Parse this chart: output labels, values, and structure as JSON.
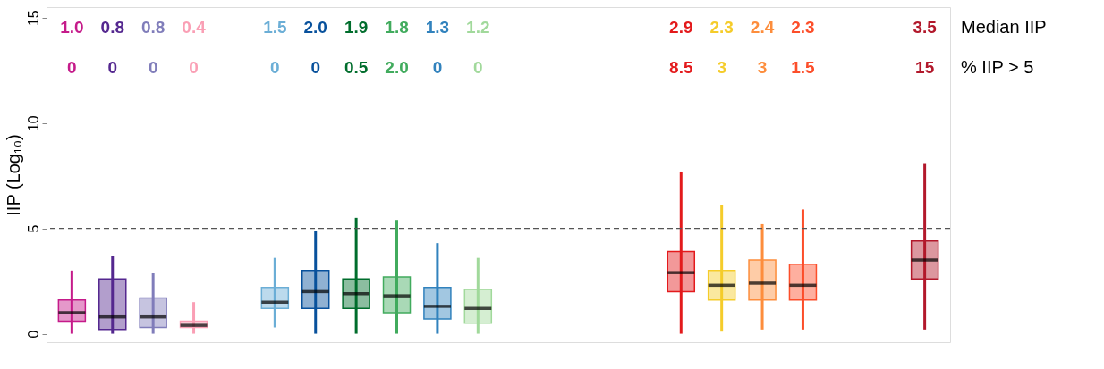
{
  "chart_data": {
    "type": "box",
    "ylabel": "IIP (Log₁₀)",
    "categories": [
      null,
      null,
      null,
      null,
      null,
      null,
      null,
      null,
      null,
      null,
      null,
      null,
      null,
      null,
      null,
      null,
      null,
      null,
      null,
      null,
      null,
      null
    ],
    "boxes": [
      {
        "low": 0,
        "q1": 0.6,
        "median": 1.0,
        "q3": 1.6,
        "high": 3.0
      },
      {
        "low": 0,
        "q1": 0.2,
        "median": 0.8,
        "q3": 2.6,
        "high": 3.7
      },
      {
        "low": 0,
        "q1": 0.3,
        "median": 0.8,
        "q3": 1.7,
        "high": 2.9
      },
      {
        "low": 0,
        "q1": 0.3,
        "median": 0.4,
        "q3": 0.6,
        "high": 1.5
      },
      null,
      {
        "low": 0.3,
        "q1": 1.2,
        "median": 1.5,
        "q3": 2.2,
        "high": 3.6
      },
      {
        "low": 0,
        "q1": 1.2,
        "median": 2.0,
        "q3": 3.0,
        "high": 4.9
      },
      {
        "low": 0,
        "q1": 1.2,
        "median": 1.9,
        "q3": 2.6,
        "high": 5.5
      },
      {
        "low": 0,
        "q1": 1.0,
        "median": 1.8,
        "q3": 2.7,
        "high": 5.4
      },
      {
        "low": 0,
        "q1": 0.7,
        "median": 1.3,
        "q3": 2.2,
        "high": 4.3
      },
      {
        "low": 0,
        "q1": 0.5,
        "median": 1.2,
        "q3": 2.1,
        "high": 3.6
      },
      null,
      null,
      null,
      null,
      {
        "low": 0,
        "q1": 2.0,
        "median": 2.9,
        "q3": 3.9,
        "high": 7.7
      },
      {
        "low": 0.1,
        "q1": 1.6,
        "median": 2.3,
        "q3": 3.0,
        "high": 6.1
      },
      {
        "low": 0.2,
        "q1": 1.6,
        "median": 2.4,
        "q3": 3.5,
        "high": 5.2
      },
      {
        "low": 0.2,
        "q1": 1.6,
        "median": 2.3,
        "q3": 3.3,
        "high": 5.9
      },
      null,
      null,
      {
        "low": 0.2,
        "q1": 2.6,
        "median": 3.5,
        "q3": 4.4,
        "high": 8.1
      }
    ],
    "colors": [
      "#c51b8a",
      "#54278f",
      "#807dba",
      "#fa9fb5",
      null,
      "#6baed6",
      "#08519c",
      "#006d2c",
      "#41ab5d",
      "#3182bd",
      "#a1d99b",
      null,
      null,
      null,
      null,
      "#e31a1c",
      "#f5cc2a",
      "#fd8d3c",
      "#fc4e2a",
      null,
      null,
      "#b2182b"
    ],
    "value_labels": [
      "1.0",
      "0.8",
      "0.8",
      "0.4",
      null,
      "1.5",
      "2.0",
      "1.9",
      "1.8",
      "1.3",
      "1.2",
      null,
      null,
      null,
      null,
      "2.9",
      "2.3",
      "2.4",
      "2.3",
      null,
      null,
      "3.5"
    ],
    "annotations": [
      "Median IIP",
      "% IIP > 5",
      "0",
      "0",
      "0",
      "0",
      "0",
      "0",
      "0.5",
      "2.0",
      "0",
      "0",
      "8.5",
      "3",
      "3",
      "1.5",
      "15"
    ],
    "ylim": [
      -0.4,
      15.5
    ],
    "yticks": [
      0,
      5,
      10,
      15
    ],
    "ref_lines": [
      {
        "axis": "y",
        "value": 5,
        "line_style": "dashed",
        "color": "#555555"
      }
    ],
    "grid": false,
    "tick_labels": "y"
  }
}
